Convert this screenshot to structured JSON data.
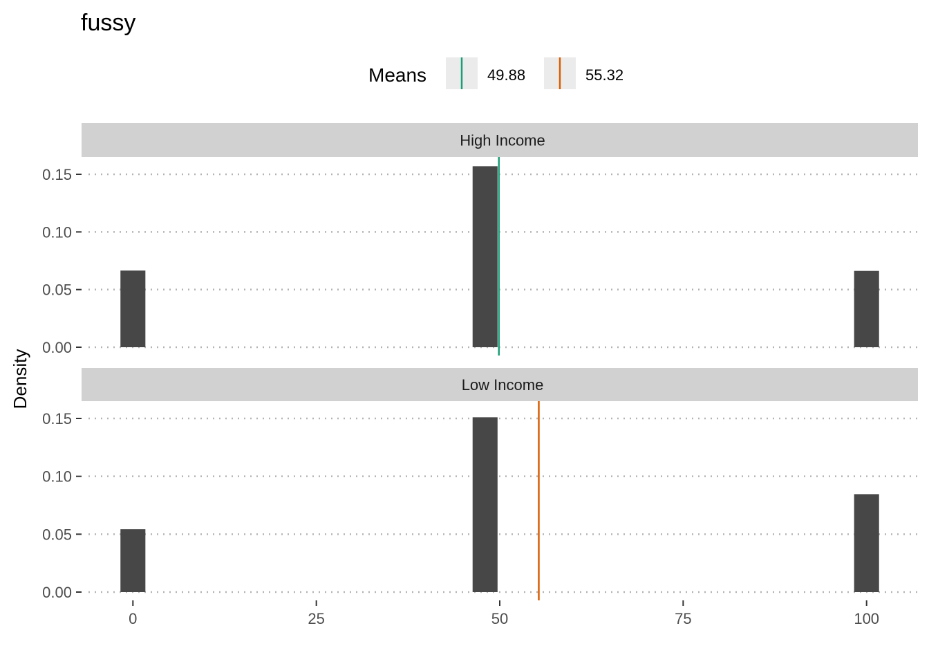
{
  "chart_data": {
    "type": "bar",
    "title": "fussy",
    "xlabel": "",
    "ylabel": "Density",
    "xlim": [
      -7,
      107
    ],
    "ylim": [
      0,
      0.165
    ],
    "x_ticks": [
      0,
      25,
      50,
      75,
      100
    ],
    "y_ticks": [
      0,
      0.05,
      0.1,
      0.15
    ],
    "y_tick_labels": [
      "0.00",
      "0.05",
      "0.10",
      "0.15"
    ],
    "bar_width": 3.4,
    "grid": "horizontal-dotted",
    "legend": {
      "title": "Means",
      "placement": "top",
      "entries": [
        {
          "label": "49.88",
          "color": "#1b9e77"
        },
        {
          "label": "55.32",
          "color": "#d95f02"
        }
      ]
    },
    "panels": [
      {
        "name": "High Income",
        "x": [
          0,
          48,
          100
        ],
        "values": [
          0.0665,
          0.157,
          0.0662
        ],
        "mean": 49.88,
        "mean_color": "#1b9e77"
      },
      {
        "name": "Low Income",
        "x": [
          0,
          48,
          100
        ],
        "values": [
          0.0543,
          0.151,
          0.0846
        ],
        "mean": 55.32,
        "mean_color": "#d95f02"
      }
    ],
    "bar_color": "#474747",
    "strip_color": "#d1d1d1",
    "grid_color": "#b3b3b3"
  }
}
